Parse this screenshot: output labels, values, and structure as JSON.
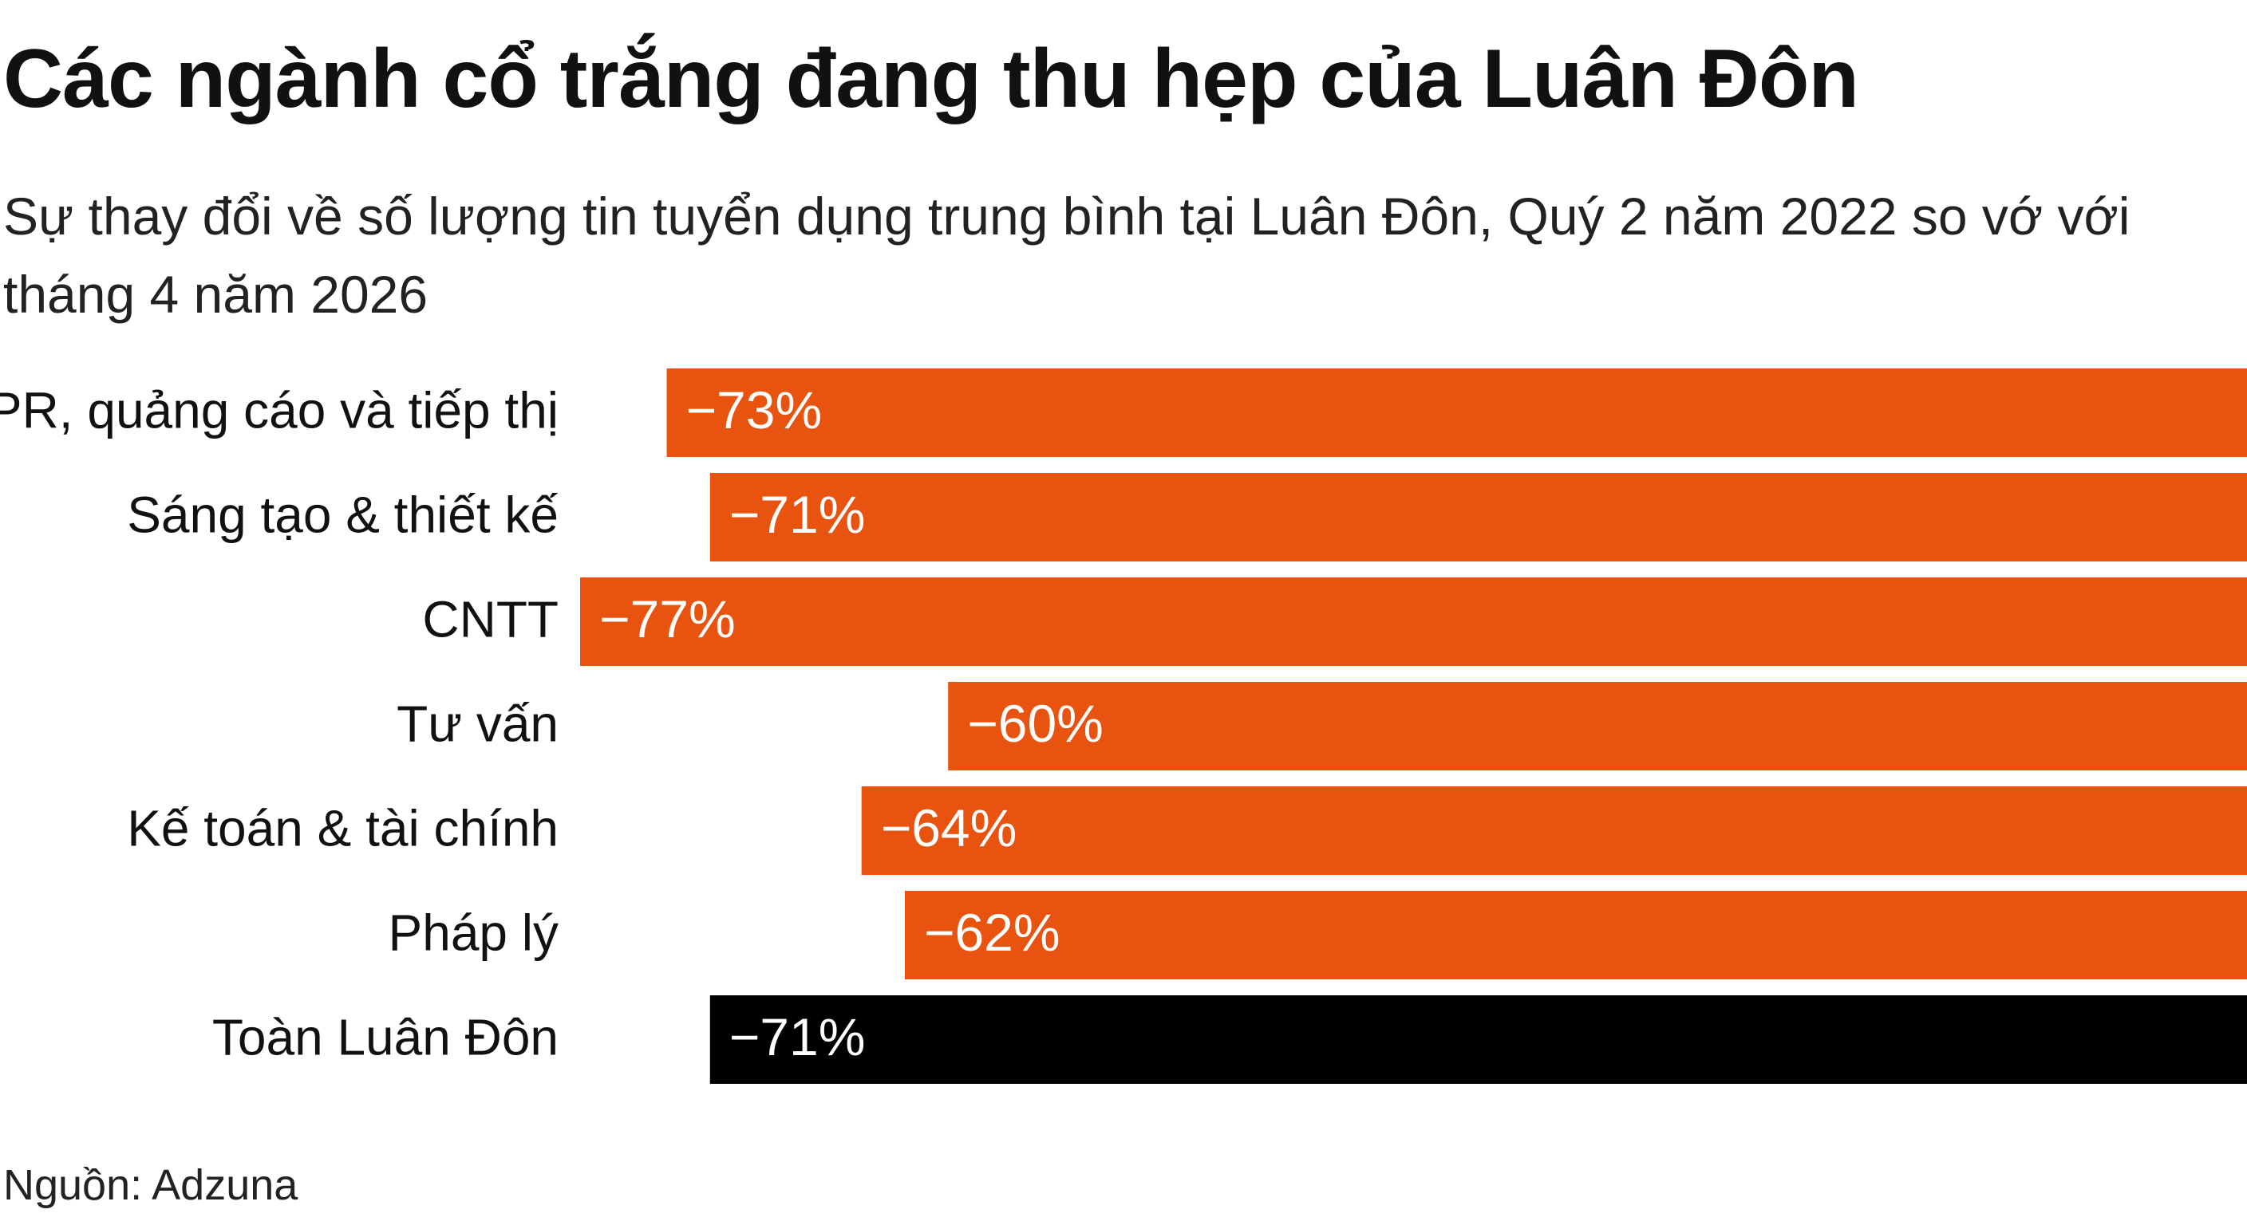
{
  "chart_data": {
    "type": "bar",
    "orientation": "horizontal",
    "title": "Các ngành cổ trắng đang thu hẹp của Luân Đôn",
    "subtitle": "Sự thay đổi về số lượng tin tuyển dụng trung bình tại Luân Đôn, Quý 2 năm 2022 so vớ với tháng 4 năm 2026",
    "categories": [
      "PR, quảng cáo và tiếp thị",
      "Sáng tạo & thiết kế",
      "CNTT",
      "Tư vấn",
      "Kế toán & tài chính",
      "Pháp lý",
      "Toàn Luân Đôn"
    ],
    "values": [
      -73,
      -71,
      -77,
      -60,
      -64,
      -62,
      -71
    ],
    "value_labels": [
      "−73%",
      "−71%",
      "−77%",
      "−60%",
      "−64%",
      "−62%",
      "−71%"
    ],
    "colors": [
      "#e8540f",
      "#e8540f",
      "#e8540f",
      "#e8540f",
      "#e8540f",
      "#e8540f",
      "#000000"
    ],
    "source": "Nguồn: Adzuna"
  }
}
